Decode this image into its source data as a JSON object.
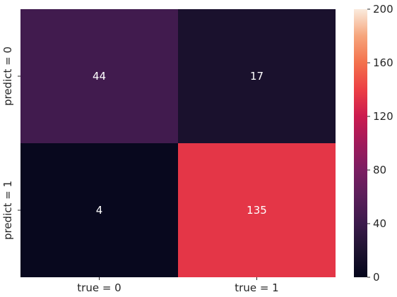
{
  "chart_data": {
    "type": "heatmap",
    "title": "",
    "xlabel": "",
    "ylabel": "",
    "x_categories": [
      "true = 0",
      "true = 1"
    ],
    "y_categories": [
      "predict = 0",
      "predict = 1"
    ],
    "values": [
      [
        44,
        17
      ],
      [
        4,
        135
      ]
    ],
    "annotations": [
      [
        "44",
        "17"
      ],
      [
        "4",
        "135"
      ]
    ],
    "colorbar": {
      "vmin": 0,
      "vmax": 200,
      "ticks": [
        "0",
        "40",
        "80",
        "120",
        "160",
        "200"
      ],
      "colormap": "rocket"
    },
    "grid": false,
    "legend": "colorbar-right"
  }
}
